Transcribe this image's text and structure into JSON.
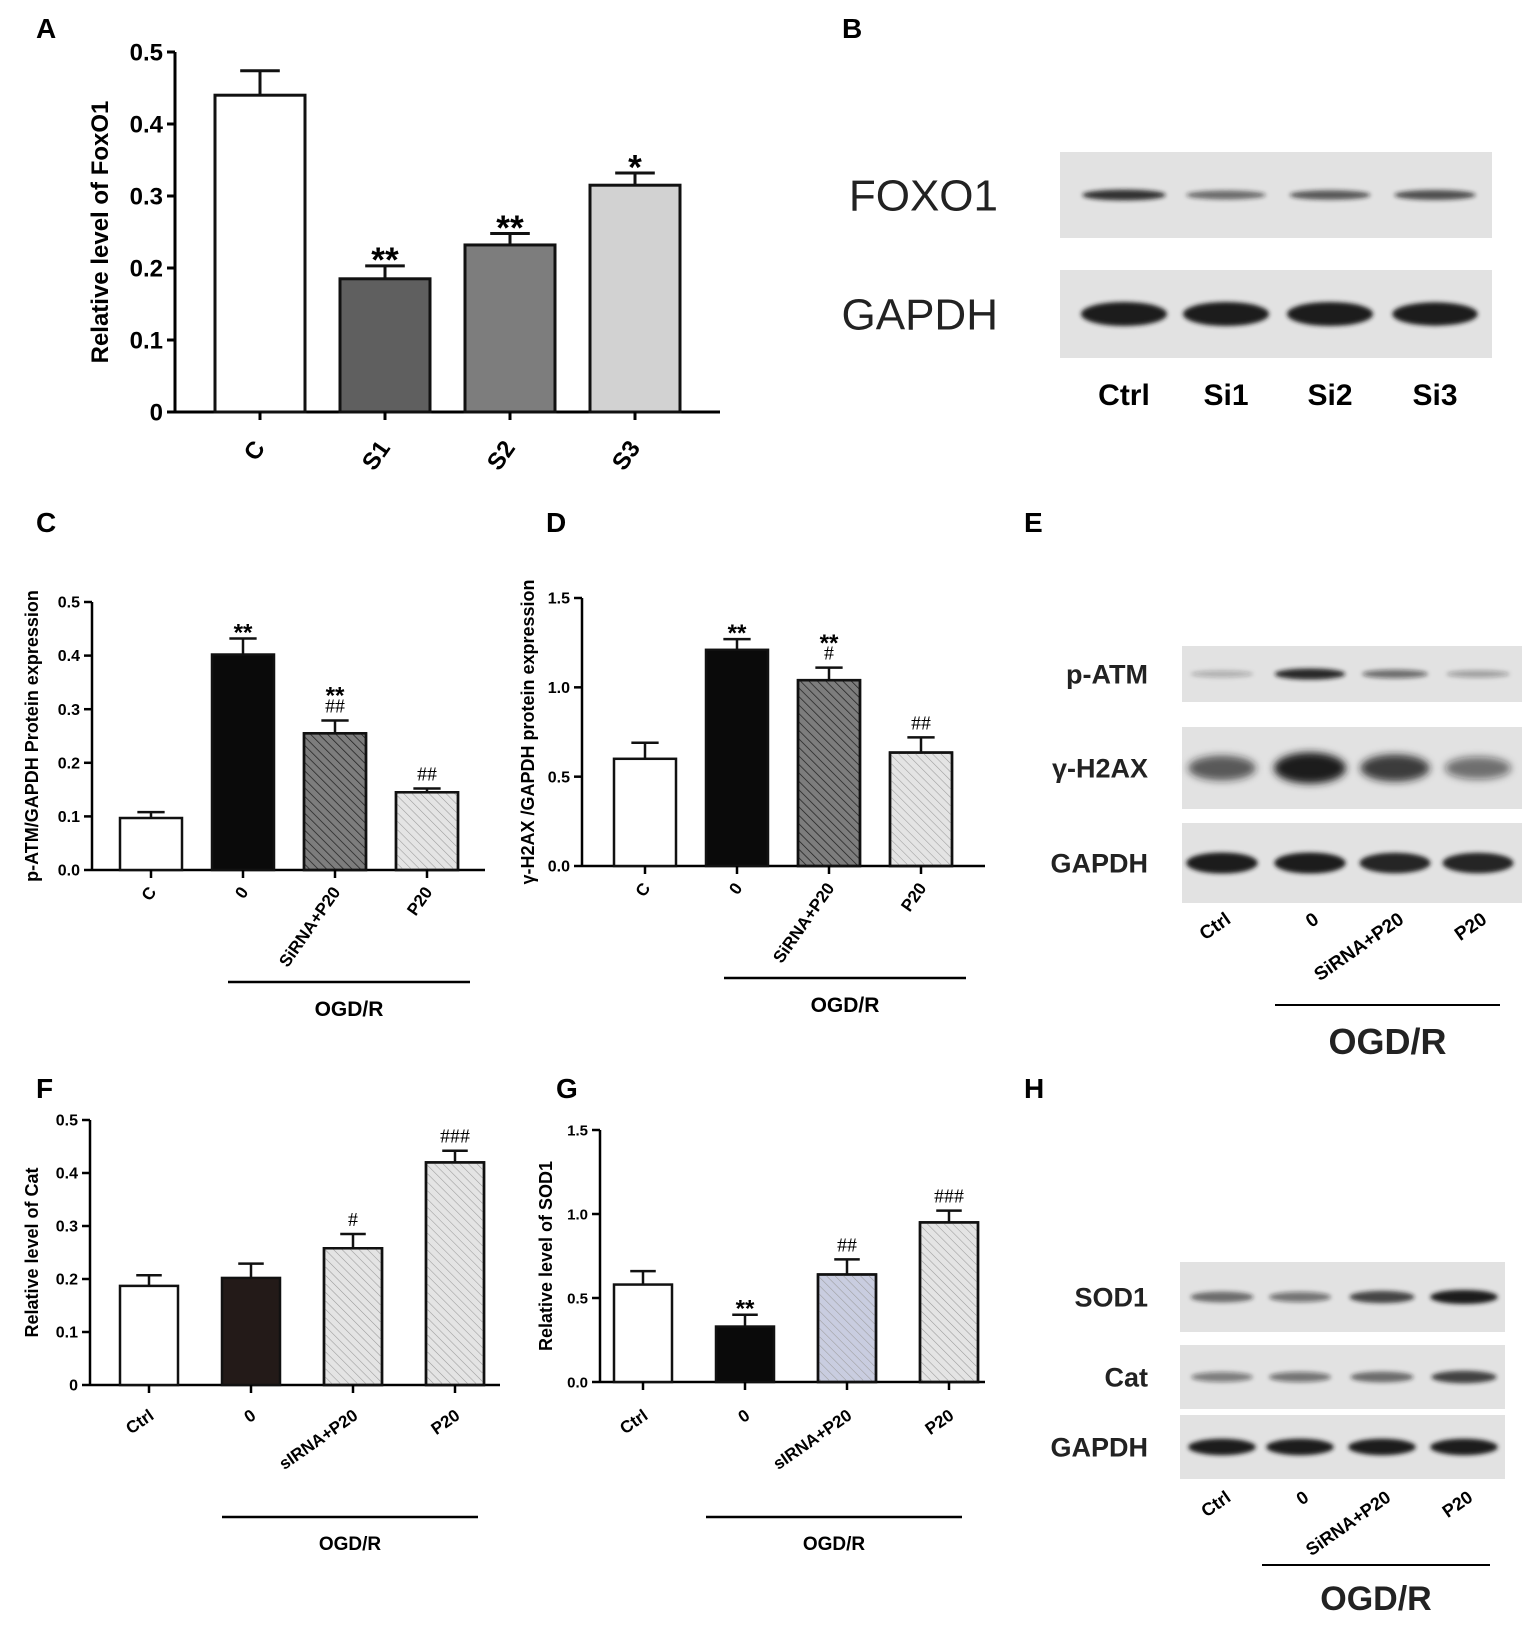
{
  "colors": {
    "bar_white": "#ffffff",
    "bar_black": "#0a0a0a",
    "bar_dark_gray": "#5f5f5f",
    "bar_mid_gray": "#7d7d7d",
    "bar_light_gray": "#d2d2d2",
    "bar_hatch_light": "#e4e4e4",
    "bar_hatch_blue": "#c9cde0",
    "bar_dark_brown": "#231a18",
    "blot_background": "#e2e2e2",
    "band": "#1a1a1a"
  },
  "panels": {
    "A": "A",
    "B": "B",
    "C": "C",
    "D": "D",
    "E": "E",
    "F": "F",
    "G": "G",
    "H": "H"
  },
  "chart_data": [
    {
      "panel": "A",
      "type": "bar",
      "ylabel": "Relative level of FoxO1",
      "ylim": [
        0,
        0.5
      ],
      "yticks": [
        "0",
        "0.1",
        "0.2",
        "0.3",
        "0.4",
        "0.5"
      ],
      "categories": [
        "C",
        "S1",
        "S2",
        "S3"
      ],
      "values": [
        0.44,
        0.185,
        0.232,
        0.315
      ],
      "errors": [
        0.034,
        0.018,
        0.016,
        0.017
      ],
      "fills": [
        "bar_white",
        "bar_dark_gray",
        "bar_mid_gray",
        "bar_light_gray"
      ],
      "hatch": [
        false,
        false,
        false,
        false
      ],
      "significance": [
        "",
        "**",
        "**",
        "*"
      ],
      "group_label": ""
    },
    {
      "panel": "C",
      "type": "bar",
      "ylabel": "p-ATM/GAPDH Protein expression",
      "ylim": [
        0,
        0.5
      ],
      "yticks": [
        "0.0",
        "0.1",
        "0.2",
        "0.3",
        "0.4",
        "0.5"
      ],
      "categories": [
        "C",
        "0",
        "SiRNA+P20",
        "P20"
      ],
      "values": [
        0.097,
        0.402,
        0.255,
        0.145
      ],
      "errors": [
        0.011,
        0.03,
        0.024,
        0.007
      ],
      "fills": [
        "bar_white",
        "bar_black",
        "bar_mid_gray",
        "bar_hatch_light"
      ],
      "hatch": [
        false,
        false,
        true,
        true
      ],
      "significance": [
        "",
        "**",
        "**\n##",
        "##"
      ],
      "group_label": "OGD/R"
    },
    {
      "panel": "D",
      "type": "bar",
      "ylabel": "γ-H2AX /GAPDH protein expression",
      "ylim": [
        0,
        1.5
      ],
      "yticks": [
        "0.0",
        "0.5",
        "1.0",
        "1.5"
      ],
      "categories": [
        "C",
        "0",
        "SiRNA+P20",
        "P20"
      ],
      "values": [
        0.6,
        1.21,
        1.04,
        0.635
      ],
      "errors": [
        0.09,
        0.06,
        0.07,
        0.085
      ],
      "fills": [
        "bar_white",
        "bar_black",
        "bar_mid_gray",
        "bar_hatch_light"
      ],
      "hatch": [
        false,
        false,
        true,
        true
      ],
      "significance": [
        "",
        "**",
        "**\n#",
        "##"
      ],
      "group_label": "OGD/R"
    },
    {
      "panel": "F",
      "type": "bar",
      "ylabel": "Relative level of Cat",
      "ylim": [
        0,
        0.5
      ],
      "yticks": [
        "0",
        "0.1",
        "0.2",
        "0.3",
        "0.4",
        "0.5"
      ],
      "categories": [
        "Ctrl",
        "0",
        "sIRNA+P20",
        "P20"
      ],
      "values": [
        0.187,
        0.202,
        0.258,
        0.42
      ],
      "errors": [
        0.02,
        0.027,
        0.027,
        0.022
      ],
      "fills": [
        "bar_white",
        "bar_dark_brown",
        "bar_hatch_light",
        "bar_hatch_light"
      ],
      "hatch": [
        false,
        false,
        true,
        true
      ],
      "significance": [
        "",
        "",
        "#",
        "###"
      ],
      "group_label": "OGD/R"
    },
    {
      "panel": "G",
      "type": "bar",
      "ylabel": "Relative level of SOD1",
      "ylim": [
        0,
        1.5
      ],
      "yticks": [
        "0.0",
        "0.5",
        "1.0",
        "1.5"
      ],
      "categories": [
        "Ctrl",
        "0",
        "sIRNA+P20",
        "P20"
      ],
      "values": [
        0.58,
        0.33,
        0.64,
        0.95
      ],
      "errors": [
        0.08,
        0.07,
        0.09,
        0.07
      ],
      "fills": [
        "bar_white",
        "bar_black",
        "bar_hatch_blue",
        "bar_hatch_light"
      ],
      "hatch": [
        false,
        false,
        true,
        true
      ],
      "significance": [
        "",
        "**",
        "##",
        "###"
      ],
      "group_label": "OGD/R"
    }
  ],
  "blots": {
    "B": {
      "rows": [
        "FOXO1",
        "GAPDH"
      ],
      "lanes": [
        "Ctrl",
        "Si1",
        "Si2",
        "Si3"
      ],
      "intensity": [
        [
          0.8,
          0.5,
          0.6,
          0.65
        ],
        [
          1.0,
          1.0,
          1.0,
          0.95
        ]
      ]
    },
    "E": {
      "rows": [
        "p-ATM",
        "γ-H2AX",
        "GAPDH"
      ],
      "lanes": [
        "Ctrl",
        "0",
        "SiRNA+P20",
        "P20"
      ],
      "intensity": [
        [
          0.12,
          0.85,
          0.45,
          0.2
        ],
        [
          0.6,
          1.0,
          0.75,
          0.45
        ],
        [
          0.95,
          0.95,
          0.9,
          0.9
        ]
      ],
      "group_label": "OGD/R"
    },
    "H": {
      "rows": [
        "SOD1",
        "Cat",
        "GAPDH"
      ],
      "lanes": [
        "Ctrl",
        "0",
        "SiRNA+P20",
        "P20"
      ],
      "intensity": [
        [
          0.5,
          0.42,
          0.7,
          0.95
        ],
        [
          0.38,
          0.42,
          0.5,
          0.72
        ],
        [
          0.95,
          0.95,
          0.95,
          0.95
        ]
      ],
      "group_label": "OGD/R"
    }
  }
}
